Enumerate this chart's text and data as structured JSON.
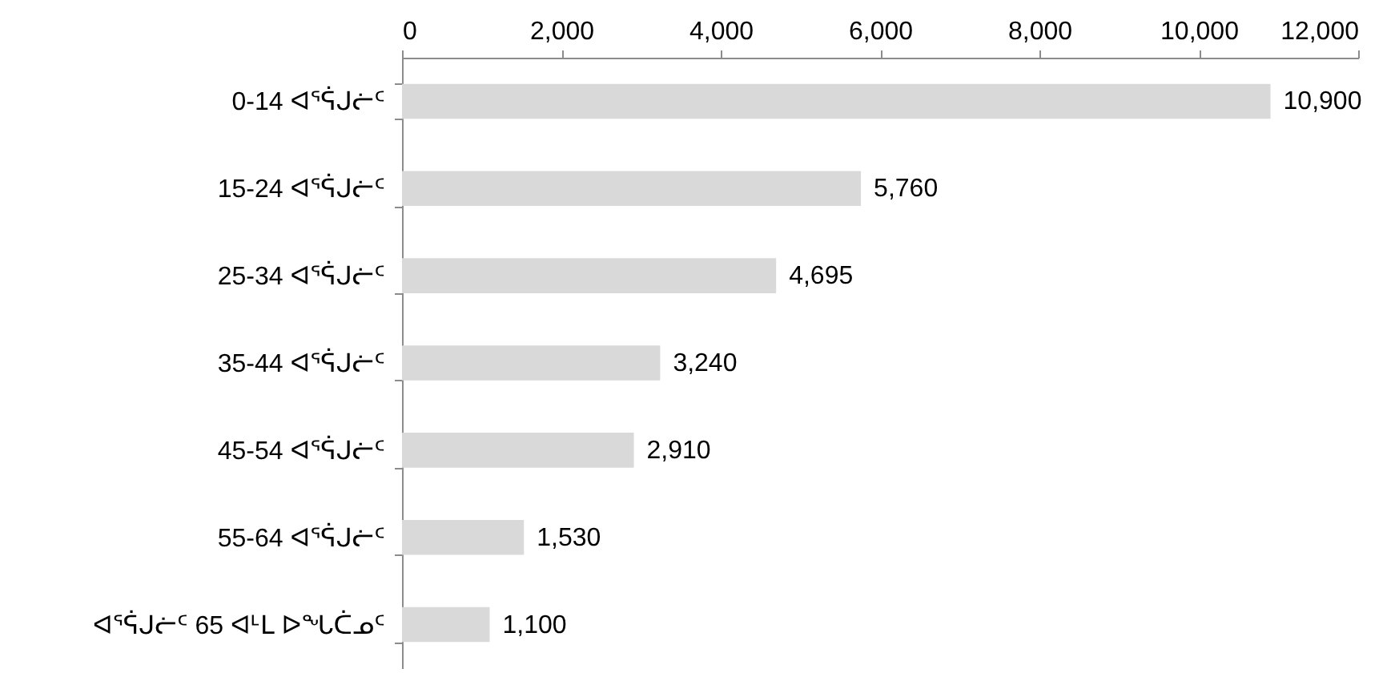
{
  "chart_data": {
    "type": "bar",
    "orientation": "horizontal",
    "categories": [
      "0-14 ᐊᕐᕌᒍᓖᑦ",
      "15-24 ᐊᕐᕌᒍᓖᑦ",
      "25-34 ᐊᕐᕌᒍᓖᑦ",
      "35-44 ᐊᕐᕌᒍᓖᑦ",
      "45-54 ᐊᕐᕌᒍᓖᑦ",
      "55-64 ᐊᕐᕌᒍᓖᑦ",
      "ᐊᕐᕌᒍᓖᑦ 65 ᐊᒻᒪ ᐅᖓᑖᓄᑦ"
    ],
    "values": [
      10900,
      5760,
      4695,
      3240,
      2910,
      1530,
      1100
    ],
    "value_labels": [
      "10,900",
      "5,760",
      "4,695",
      "3,240",
      "2,910",
      "1,530",
      "1,100"
    ],
    "color": "#d9d9d9",
    "xlim": [
      0,
      12000
    ],
    "xticks": [
      {
        "value": 0,
        "label": "0"
      },
      {
        "value": 2000,
        "label": "2,000"
      },
      {
        "value": 4000,
        "label": "4,000"
      },
      {
        "value": 6000,
        "label": "6,000"
      },
      {
        "value": 8000,
        "label": "8,000"
      },
      {
        "value": 10000,
        "label": "10,000"
      },
      {
        "value": 12000,
        "label": "12,000"
      }
    ],
    "grid": false
  }
}
